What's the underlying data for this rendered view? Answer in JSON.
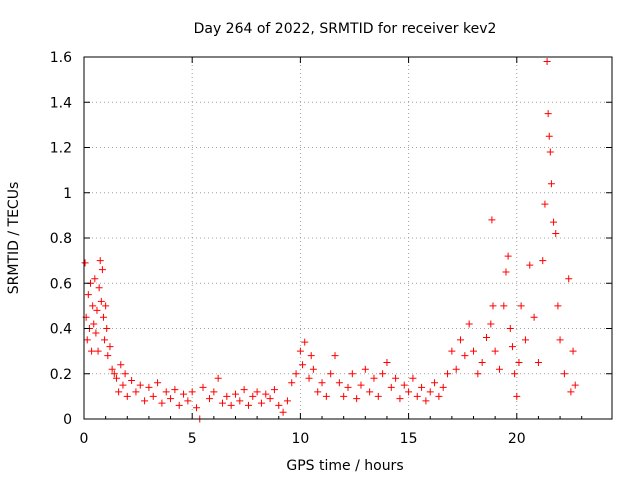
{
  "chart_data": {
    "type": "scatter",
    "title": "Day 264 of 2022, SRMTID for receiver kev2",
    "xlabel": "GPS time / hours",
    "ylabel": "SRMTID / TECUs",
    "xlim": [
      0,
      24.4
    ],
    "ylim": [
      0,
      1.6
    ],
    "xticks": [
      0,
      5,
      10,
      15,
      20
    ],
    "xtick_labels": [
      "0",
      "5",
      "10",
      "15",
      "20"
    ],
    "yticks": [
      0,
      0.2,
      0.4,
      0.6,
      0.8,
      1,
      1.2,
      1.4,
      1.6
    ],
    "ytick_labels": [
      "0",
      "0.2",
      "0.4",
      "0.6",
      "0.8",
      "1",
      "1.2",
      "1.4",
      "1.6"
    ],
    "grid": true,
    "marker": "+",
    "series": [
      {
        "name": "SRMTID",
        "color": "#ff0000",
        "points": [
          [
            0.05,
            0.69
          ],
          [
            0.1,
            0.45
          ],
          [
            0.15,
            0.35
          ],
          [
            0.2,
            0.55
          ],
          [
            0.25,
            0.4
          ],
          [
            0.3,
            0.6
          ],
          [
            0.35,
            0.3
          ],
          [
            0.4,
            0.5
          ],
          [
            0.45,
            0.42
          ],
          [
            0.5,
            0.62
          ],
          [
            0.55,
            0.38
          ],
          [
            0.6,
            0.48
          ],
          [
            0.65,
            0.3
          ],
          [
            0.7,
            0.58
          ],
          [
            0.75,
            0.7
          ],
          [
            0.8,
            0.52
          ],
          [
            0.85,
            0.66
          ],
          [
            0.9,
            0.45
          ],
          [
            0.95,
            0.35
          ],
          [
            1.0,
            0.5
          ],
          [
            1.05,
            0.4
          ],
          [
            1.1,
            0.28
          ],
          [
            1.2,
            0.32
          ],
          [
            1.3,
            0.22
          ],
          [
            1.4,
            0.2
          ],
          [
            1.5,
            0.18
          ],
          [
            1.6,
            0.12
          ],
          [
            1.7,
            0.24
          ],
          [
            1.8,
            0.15
          ],
          [
            1.9,
            0.2
          ],
          [
            2.0,
            0.1
          ],
          [
            2.2,
            0.17
          ],
          [
            2.4,
            0.12
          ],
          [
            2.6,
            0.15
          ],
          [
            2.8,
            0.08
          ],
          [
            3.0,
            0.14
          ],
          [
            3.2,
            0.1
          ],
          [
            3.4,
            0.16
          ],
          [
            3.6,
            0.07
          ],
          [
            3.8,
            0.12
          ],
          [
            4.0,
            0.09
          ],
          [
            4.2,
            0.13
          ],
          [
            4.4,
            0.06
          ],
          [
            4.6,
            0.11
          ],
          [
            4.8,
            0.08
          ],
          [
            5.0,
            0.12
          ],
          [
            5.2,
            0.05
          ],
          [
            5.35,
            0.0
          ],
          [
            5.5,
            0.14
          ],
          [
            5.8,
            0.09
          ],
          [
            6.0,
            0.12
          ],
          [
            6.2,
            0.18
          ],
          [
            6.4,
            0.07
          ],
          [
            6.6,
            0.1
          ],
          [
            6.8,
            0.06
          ],
          [
            7.0,
            0.11
          ],
          [
            7.2,
            0.08
          ],
          [
            7.4,
            0.13
          ],
          [
            7.6,
            0.06
          ],
          [
            7.8,
            0.1
          ],
          [
            8.0,
            0.12
          ],
          [
            8.2,
            0.07
          ],
          [
            8.4,
            0.11
          ],
          [
            8.6,
            0.09
          ],
          [
            8.8,
            0.13
          ],
          [
            9.0,
            0.06
          ],
          [
            9.2,
            0.03
          ],
          [
            9.4,
            0.08
          ],
          [
            9.6,
            0.16
          ],
          [
            9.8,
            0.2
          ],
          [
            10.0,
            0.3
          ],
          [
            10.1,
            0.24
          ],
          [
            10.2,
            0.34
          ],
          [
            10.4,
            0.18
          ],
          [
            10.5,
            0.28
          ],
          [
            10.6,
            0.22
          ],
          [
            10.8,
            0.12
          ],
          [
            11.0,
            0.16
          ],
          [
            11.2,
            0.1
          ],
          [
            11.4,
            0.2
          ],
          [
            11.6,
            0.28
          ],
          [
            11.8,
            0.16
          ],
          [
            12.0,
            0.1
          ],
          [
            12.2,
            0.14
          ],
          [
            12.4,
            0.2
          ],
          [
            12.6,
            0.09
          ],
          [
            12.8,
            0.15
          ],
          [
            13.0,
            0.22
          ],
          [
            13.2,
            0.12
          ],
          [
            13.4,
            0.18
          ],
          [
            13.6,
            0.1
          ],
          [
            13.8,
            0.2
          ],
          [
            14.0,
            0.25
          ],
          [
            14.2,
            0.14
          ],
          [
            14.4,
            0.18
          ],
          [
            14.6,
            0.09
          ],
          [
            14.8,
            0.15
          ],
          [
            15.0,
            0.12
          ],
          [
            15.2,
            0.18
          ],
          [
            15.4,
            0.1
          ],
          [
            15.6,
            0.14
          ],
          [
            15.8,
            0.08
          ],
          [
            16.0,
            0.12
          ],
          [
            16.2,
            0.16
          ],
          [
            16.4,
            0.1
          ],
          [
            16.6,
            0.14
          ],
          [
            16.8,
            0.2
          ],
          [
            17.0,
            0.3
          ],
          [
            17.2,
            0.22
          ],
          [
            17.4,
            0.35
          ],
          [
            17.6,
            0.28
          ],
          [
            17.8,
            0.42
          ],
          [
            18.0,
            0.3
          ],
          [
            18.2,
            0.2
          ],
          [
            18.4,
            0.25
          ],
          [
            18.6,
            0.36
          ],
          [
            18.8,
            0.42
          ],
          [
            18.85,
            0.88
          ],
          [
            18.9,
            0.5
          ],
          [
            19.0,
            0.3
          ],
          [
            19.2,
            0.22
          ],
          [
            19.4,
            0.5
          ],
          [
            19.5,
            0.65
          ],
          [
            19.6,
            0.72
          ],
          [
            19.7,
            0.4
          ],
          [
            19.8,
            0.32
          ],
          [
            19.9,
            0.2
          ],
          [
            20.0,
            0.1
          ],
          [
            20.1,
            0.25
          ],
          [
            20.2,
            0.5
          ],
          [
            20.4,
            0.35
          ],
          [
            20.6,
            0.68
          ],
          [
            20.8,
            0.45
          ],
          [
            21.0,
            0.25
          ],
          [
            21.2,
            0.7
          ],
          [
            21.3,
            0.95
          ],
          [
            21.4,
            1.58
          ],
          [
            21.45,
            1.35
          ],
          [
            21.5,
            1.25
          ],
          [
            21.55,
            1.18
          ],
          [
            21.6,
            1.04
          ],
          [
            21.7,
            0.87
          ],
          [
            21.8,
            0.82
          ],
          [
            21.9,
            0.5
          ],
          [
            22.0,
            0.35
          ],
          [
            22.2,
            0.2
          ],
          [
            22.4,
            0.62
          ],
          [
            22.5,
            0.12
          ],
          [
            22.6,
            0.3
          ],
          [
            22.7,
            0.15
          ]
        ]
      }
    ]
  }
}
